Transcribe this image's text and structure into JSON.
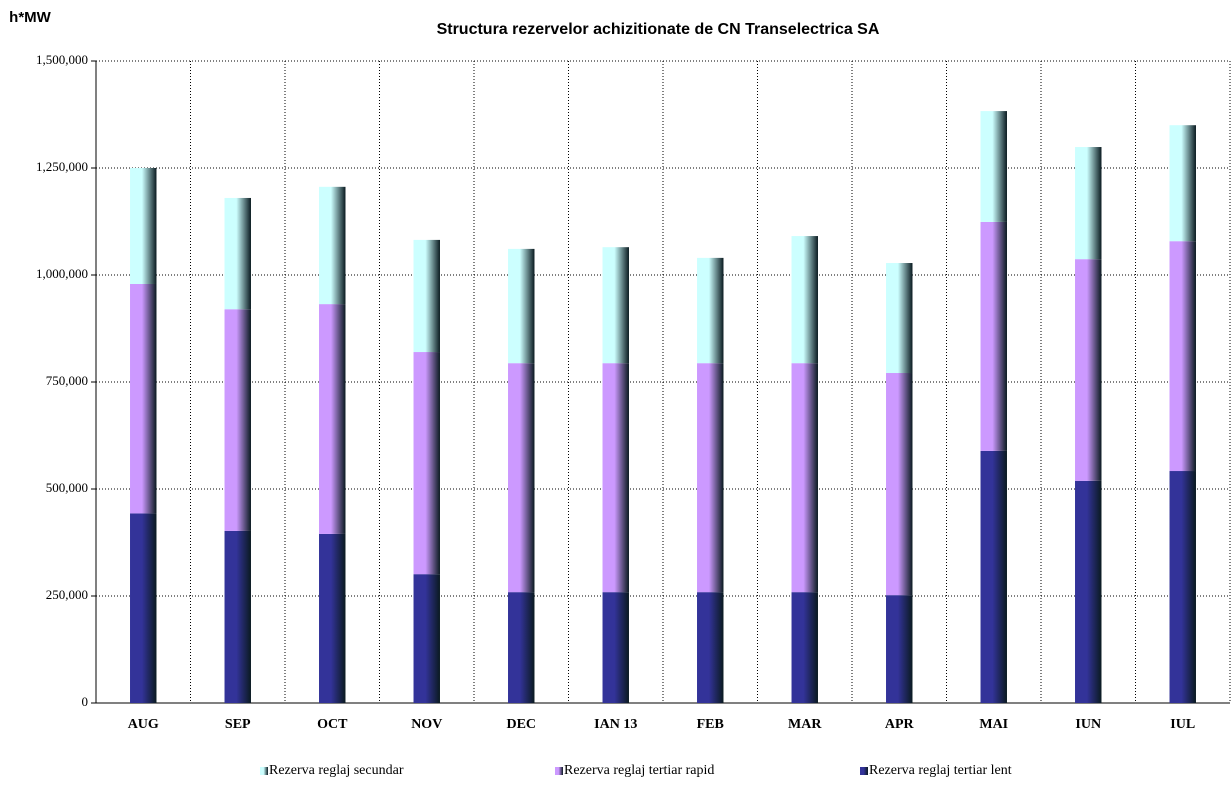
{
  "chart_data": {
    "type": "stacked_bar",
    "title": "Structura rezervelor achizitionate de CN Transelectrica SA",
    "y_axis_label": "h*MW",
    "categories": [
      "AUG",
      "SEP",
      "OCT",
      "NOV",
      "DEC",
      "IAN 13",
      "FEB",
      "MAR",
      "APR",
      "MAI",
      "IUN",
      "IUL"
    ],
    "series": [
      {
        "name": "Rezerva reglaj secundar",
        "color": "#ccffff",
        "values": [
          271000,
          260000,
          274000,
          262000,
          267000,
          271000,
          246000,
          297000,
          257000,
          259000,
          262000,
          271000
        ]
      },
      {
        "name": "Rezerva reglaj tertiar rapid",
        "color": "#cc99ff",
        "values": [
          536000,
          518000,
          537000,
          519000,
          535000,
          535000,
          535000,
          535000,
          519000,
          535000,
          518000,
          537000
        ]
      },
      {
        "name": "Rezerva reglaj tertiar lent",
        "color": "#333399",
        "values": [
          443000,
          402000,
          395000,
          301000,
          259000,
          259000,
          259000,
          259000,
          252000,
          589000,
          519000,
          542000
        ]
      }
    ],
    "ylim": [
      0,
      1500000
    ],
    "yticks": [
      0,
      {
        "value": 250000,
        "label": "250,000"
      },
      {
        "value": 500000,
        "label": "500,000"
      },
      {
        "value": 750000,
        "label": "750,000"
      },
      {
        "value": 1000000,
        "label": "1,000,000"
      },
      {
        "value": 1250000,
        "label": "1,250,000"
      },
      {
        "value": 1500000,
        "label": "1,500,000"
      }
    ],
    "grid": true,
    "legend_position": "bottom"
  }
}
